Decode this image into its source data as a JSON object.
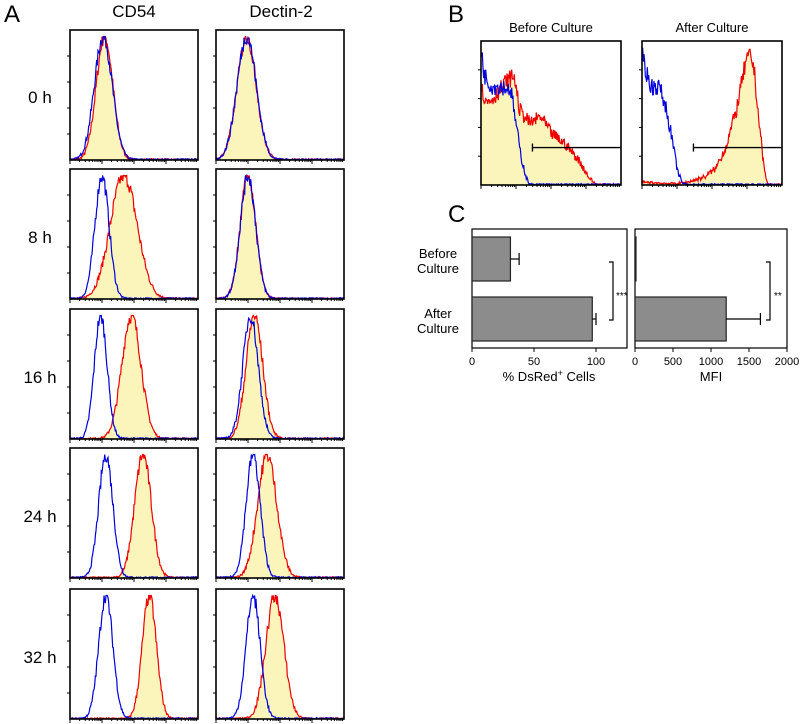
{
  "panel_labels": {
    "a": "A",
    "b": "B",
    "c": "C"
  },
  "chart_data": [
    {
      "type": "histogram",
      "panel": "A",
      "columns": [
        "CD54",
        "Dectin-2"
      ],
      "rows": [
        "0 h",
        "8 h",
        "16 h",
        "24 h",
        "32 h"
      ],
      "x_scale": "log (4 decades)",
      "colors": {
        "control": "#0000dd",
        "stained": "#ee0000",
        "fill": "#fbf5bc"
      },
      "peaks": {
        "CD54": [
          {
            "control": [
              1.04,
              0.28
            ],
            "stained": [
              1.08,
              0.26
            ]
          },
          {
            "control": [
              1.0,
              0.22
            ],
            "stained": [
              1.68,
              0.42
            ]
          },
          {
            "control": [
              0.96,
              0.2
            ],
            "stained": [
              1.92,
              0.3
            ]
          },
          {
            "control": [
              1.12,
              0.22
            ],
            "stained": [
              2.28,
              0.26
            ]
          },
          {
            "control": [
              1.12,
              0.22
            ],
            "stained": [
              2.48,
              0.22
            ]
          }
        ],
        "Dectin-2": [
          {
            "control": [
              0.96,
              0.3
            ],
            "stained": [
              0.96,
              0.3
            ]
          },
          {
            "control": [
              1.0,
              0.24
            ],
            "stained": [
              1.0,
              0.24
            ]
          },
          {
            "control": [
              1.08,
              0.24
            ],
            "stained": [
              1.2,
              0.26
            ]
          },
          {
            "control": [
              1.16,
              0.22
            ],
            "stained": [
              1.6,
              0.3
            ]
          },
          {
            "control": [
              1.16,
              0.22
            ],
            "stained": [
              1.84,
              0.28
            ]
          }
        ]
      }
    },
    {
      "type": "histogram",
      "panel": "B",
      "titles": [
        "Before Culture",
        "After Culture"
      ],
      "x_range": [
        0,
        4
      ],
      "curves": [
        {
          "control": [
            [
              0,
              1
            ],
            [
              0.1,
              0.8
            ],
            [
              0.3,
              0.72
            ],
            [
              0.6,
              0.72
            ],
            [
              0.85,
              0.7
            ],
            [
              1.0,
              0.45
            ],
            [
              1.15,
              0.2
            ],
            [
              1.3,
              0.05
            ],
            [
              1.4,
              0
            ]
          ],
          "stained": [
            [
              0,
              0.72
            ],
            [
              0.15,
              0.6
            ],
            [
              0.4,
              0.65
            ],
            [
              0.7,
              0.75
            ],
            [
              0.95,
              0.8
            ],
            [
              1.1,
              0.55
            ],
            [
              1.4,
              0.45
            ],
            [
              1.7,
              0.5
            ],
            [
              2.0,
              0.38
            ],
            [
              2.4,
              0.3
            ],
            [
              2.8,
              0.18
            ],
            [
              3.1,
              0.05
            ],
            [
              3.3,
              0
            ]
          ],
          "gate": {
            "from": 1.47,
            "to": 4,
            "level": 0.26
          }
        },
        {
          "control": [
            [
              0,
              1
            ],
            [
              0.1,
              0.85
            ],
            [
              0.25,
              0.72
            ],
            [
              0.5,
              0.72
            ],
            [
              0.7,
              0.55
            ],
            [
              0.85,
              0.35
            ],
            [
              1.0,
              0.12
            ],
            [
              1.15,
              0.01
            ],
            [
              1.3,
              0
            ]
          ],
          "stained": [
            [
              0,
              0.02
            ],
            [
              0.9,
              0.01
            ],
            [
              1.3,
              0.02
            ],
            [
              1.8,
              0.06
            ],
            [
              2.1,
              0.12
            ],
            [
              2.4,
              0.28
            ],
            [
              2.7,
              0.55
            ],
            [
              2.95,
              0.88
            ],
            [
              3.1,
              0.95
            ],
            [
              3.2,
              0.85
            ],
            [
              3.35,
              0.45
            ],
            [
              3.5,
              0.1
            ],
            [
              3.6,
              0
            ]
          ],
          "gate": {
            "from": 1.47,
            "to": 4,
            "level": 0.26
          }
        }
      ]
    },
    {
      "type": "bar",
      "panel": "C",
      "orientation": "horizontal",
      "categories": [
        [
          "Before",
          "Culture"
        ],
        [
          "After",
          "Culture"
        ]
      ],
      "subplots": [
        {
          "xlabel": "% DsRed",
          "xlabel_sup": "+",
          "xlabel_suffix": " Cells",
          "xlim": [
            0,
            125
          ],
          "ticks": [
            "0",
            "50",
            "100"
          ],
          "tick_values": [
            0,
            50,
            100
          ],
          "values": [
            31,
            97
          ],
          "errors": [
            7,
            3
          ],
          "significance": "***"
        },
        {
          "xlabel": "MFI",
          "xlabel_sup": "",
          "xlabel_suffix": "",
          "xlim": [
            0,
            2000
          ],
          "ticks": [
            "0",
            "500",
            "1000",
            "1500",
            "2000"
          ],
          "tick_values": [
            0,
            500,
            1000,
            1500,
            2000
          ],
          "values": [
            5,
            1200
          ],
          "errors": [
            0,
            450
          ],
          "significance": "**"
        }
      ],
      "bar_color": "#8c8c8c"
    }
  ]
}
